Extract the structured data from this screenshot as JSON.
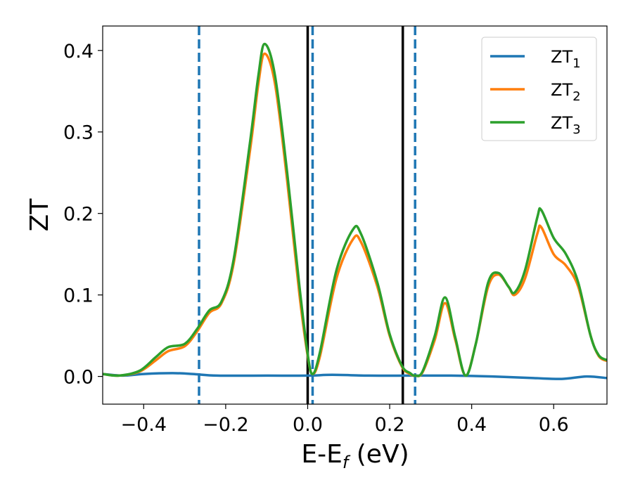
{
  "chart_data": {
    "type": "line",
    "xlabel": "E-E",
    "xlabel_sub": "f",
    "xlabel_unit": " (eV)",
    "ylabel": "ZT",
    "xlim": [
      -0.5,
      0.73
    ],
    "ylim": [
      -0.034,
      0.43
    ],
    "xticks": [
      -0.4,
      -0.2,
      0.0,
      0.2,
      0.4,
      0.6
    ],
    "xtick_labels": [
      "−0.4",
      "−0.2",
      "0.0",
      "0.2",
      "0.4",
      "0.6"
    ],
    "yticks": [
      0.0,
      0.1,
      0.2,
      0.3,
      0.4
    ],
    "ytick_labels": [
      "0.0",
      "0.1",
      "0.2",
      "0.3",
      "0.4"
    ],
    "grid": false,
    "legend_position": "top-right",
    "vlines": [
      {
        "x": -0.265,
        "style": "dashed",
        "color": "#1f77b4"
      },
      {
        "x": 0.0,
        "style": "solid",
        "color": "#000000"
      },
      {
        "x": 0.012,
        "style": "dashed",
        "color": "#1f77b4"
      },
      {
        "x": 0.232,
        "style": "solid",
        "color": "#000000"
      },
      {
        "x": 0.262,
        "style": "dashed",
        "color": "#1f77b4"
      }
    ],
    "series": [
      {
        "name": "ZT",
        "name_sub": "1",
        "color": "#1f77b4",
        "points": [
          [
            -0.5,
            0.003
          ],
          [
            -0.45,
            0.001
          ],
          [
            -0.4,
            0.003
          ],
          [
            -0.33,
            0.004
          ],
          [
            -0.28,
            0.003
          ],
          [
            -0.22,
            0.001
          ],
          [
            -0.1,
            0.001
          ],
          [
            0.0,
            0.001
          ],
          [
            0.06,
            0.002
          ],
          [
            0.15,
            0.001
          ],
          [
            0.25,
            0.001
          ],
          [
            0.35,
            0.001
          ],
          [
            0.45,
            0.0
          ],
          [
            0.55,
            -0.002
          ],
          [
            0.62,
            -0.003
          ],
          [
            0.68,
            0.0
          ],
          [
            0.73,
            -0.002
          ]
        ]
      },
      {
        "name": "ZT",
        "name_sub": "2",
        "color": "#ff7f0e",
        "points": [
          [
            -0.5,
            0.003
          ],
          [
            -0.46,
            0.001
          ],
          [
            -0.41,
            0.006
          ],
          [
            -0.37,
            0.02
          ],
          [
            -0.34,
            0.031
          ],
          [
            -0.3,
            0.037
          ],
          [
            -0.27,
            0.055
          ],
          [
            -0.24,
            0.078
          ],
          [
            -0.21,
            0.09
          ],
          [
            -0.18,
            0.14
          ],
          [
            -0.14,
            0.28
          ],
          [
            -0.12,
            0.36
          ],
          [
            -0.105,
            0.396
          ],
          [
            -0.08,
            0.36
          ],
          [
            -0.05,
            0.24
          ],
          [
            -0.02,
            0.1
          ],
          [
            0.0,
            0.025
          ],
          [
            0.012,
            0.003
          ],
          [
            0.03,
            0.025
          ],
          [
            0.07,
            0.12
          ],
          [
            0.11,
            0.168
          ],
          [
            0.13,
            0.165
          ],
          [
            0.17,
            0.11
          ],
          [
            0.2,
            0.05
          ],
          [
            0.23,
            0.012
          ],
          [
            0.25,
            0.003
          ],
          [
            0.262,
            0.001
          ],
          [
            0.28,
            0.005
          ],
          [
            0.31,
            0.045
          ],
          [
            0.335,
            0.09
          ],
          [
            0.36,
            0.045
          ],
          [
            0.385,
            0.001
          ],
          [
            0.41,
            0.04
          ],
          [
            0.44,
            0.11
          ],
          [
            0.465,
            0.125
          ],
          [
            0.49,
            0.11
          ],
          [
            0.505,
            0.1
          ],
          [
            0.53,
            0.12
          ],
          [
            0.56,
            0.175
          ],
          [
            0.57,
            0.183
          ],
          [
            0.6,
            0.15
          ],
          [
            0.63,
            0.136
          ],
          [
            0.66,
            0.11
          ],
          [
            0.69,
            0.05
          ],
          [
            0.71,
            0.025
          ],
          [
            0.73,
            0.019
          ]
        ]
      },
      {
        "name": "ZT",
        "name_sub": "3",
        "color": "#2ca02c",
        "points": [
          [
            -0.5,
            0.003
          ],
          [
            -0.46,
            0.001
          ],
          [
            -0.41,
            0.007
          ],
          [
            -0.37,
            0.024
          ],
          [
            -0.34,
            0.036
          ],
          [
            -0.3,
            0.04
          ],
          [
            -0.27,
            0.058
          ],
          [
            -0.24,
            0.081
          ],
          [
            -0.21,
            0.092
          ],
          [
            -0.18,
            0.145
          ],
          [
            -0.14,
            0.29
          ],
          [
            -0.12,
            0.37
          ],
          [
            -0.105,
            0.408
          ],
          [
            -0.08,
            0.37
          ],
          [
            -0.05,
            0.25
          ],
          [
            -0.02,
            0.11
          ],
          [
            0.0,
            0.027
          ],
          [
            0.012,
            0.003
          ],
          [
            0.03,
            0.03
          ],
          [
            0.07,
            0.13
          ],
          [
            0.11,
            0.18
          ],
          [
            0.13,
            0.175
          ],
          [
            0.17,
            0.115
          ],
          [
            0.2,
            0.052
          ],
          [
            0.23,
            0.013
          ],
          [
            0.25,
            0.004
          ],
          [
            0.262,
            0.001
          ],
          [
            0.28,
            0.006
          ],
          [
            0.31,
            0.05
          ],
          [
            0.335,
            0.097
          ],
          [
            0.36,
            0.048
          ],
          [
            0.385,
            0.001
          ],
          [
            0.41,
            0.04
          ],
          [
            0.44,
            0.115
          ],
          [
            0.465,
            0.127
          ],
          [
            0.49,
            0.11
          ],
          [
            0.505,
            0.103
          ],
          [
            0.53,
            0.13
          ],
          [
            0.56,
            0.195
          ],
          [
            0.57,
            0.204
          ],
          [
            0.6,
            0.17
          ],
          [
            0.63,
            0.15
          ],
          [
            0.66,
            0.115
          ],
          [
            0.69,
            0.05
          ],
          [
            0.71,
            0.026
          ],
          [
            0.73,
            0.02
          ]
        ]
      }
    ]
  }
}
